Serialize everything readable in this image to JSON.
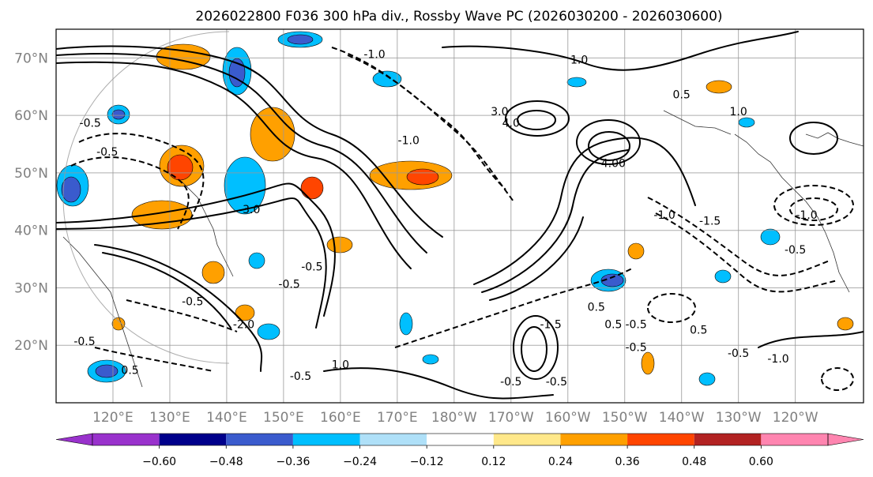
{
  "title": "2026022800 F036 300 hPa div., Rossby Wave PC (2026030200 - 2026030600)",
  "lat_labels": [
    "70°N",
    "60°N",
    "50°N",
    "40°N",
    "30°N",
    "20°N"
  ],
  "lon_labels": [
    "120°E",
    "130°E",
    "140°E",
    "150°E",
    "160°E",
    "170°E",
    "180°W",
    "170°W",
    "160°W",
    "150°W",
    "140°W",
    "130°W",
    "120°W"
  ],
  "colorbar": {
    "ticks": [
      "−0.60",
      "−0.48",
      "−0.36",
      "−0.24",
      "−0.12",
      "0.12",
      "0.24",
      "0.36",
      "0.48",
      "0.60"
    ],
    "colors": [
      "#9932cc",
      "#00008b",
      "#3a5bcd",
      "#00bfff",
      "#afe0f8",
      "#ffffff",
      "#ffe88a",
      "#ffa000",
      "#ff4500",
      "#b22222",
      "#ff85b0"
    ]
  },
  "contour_labels": [
    {
      "text": "-0.5",
      "lon": -170,
      "lat": 13
    },
    {
      "text": "-0.5",
      "lon": -162,
      "lat": 13
    },
    {
      "text": "-0.5",
      "lon": -130,
      "lat": 18
    },
    {
      "text": "-0.5",
      "lon": -148,
      "lat": 19
    },
    {
      "text": "0.5",
      "lon": -152,
      "lat": 23
    },
    {
      "text": "0.5",
      "lon": -137,
      "lat": 22
    },
    {
      "text": "-0.5",
      "lon": 153,
      "lat": 14
    },
    {
      "text": "1.0",
      "lon": 160,
      "lat": 16
    },
    {
      "text": "-2.0",
      "lon": 143,
      "lat": 23
    },
    {
      "text": "-0.5",
      "lon": 134,
      "lat": 27
    },
    {
      "text": "-0.5",
      "lon": 151,
      "lat": 30
    },
    {
      "text": "-0.5",
      "lon": 155,
      "lat": 33
    },
    {
      "text": "-1.5",
      "lon": -135,
      "lat": 41
    },
    {
      "text": "-1.0",
      "lon": -143,
      "lat": 42
    },
    {
      "text": "-0.5",
      "lon": -120,
      "lat": 36
    },
    {
      "text": "-1.0",
      "lon": -123,
      "lat": 17
    },
    {
      "text": "4.0",
      "lon": -170,
      "lat": 58
    },
    {
      "text": "3.0",
      "lon": -172,
      "lat": 60
    },
    {
      "text": "4.00",
      "lon": -152,
      "lat": 51
    },
    {
      "text": "1.0",
      "lon": -158,
      "lat": 69
    },
    {
      "text": "0.5",
      "lon": -140,
      "lat": 63
    },
    {
      "text": "-1.0",
      "lon": 166,
      "lat": 70
    },
    {
      "text": "-1.0",
      "lon": 172,
      "lat": 55
    },
    {
      "text": "-3.0",
      "lon": 144,
      "lat": 43
    },
    {
      "text": "-1.5",
      "lon": -163,
      "lat": 23
    },
    {
      "text": "-0.5",
      "lon": -148,
      "lat": 23
    },
    {
      "text": "0.5",
      "lon": -155,
      "lat": 26
    },
    {
      "text": "1.0",
      "lon": -130,
      "lat": 60
    },
    {
      "text": "-1.0",
      "lon": -118,
      "lat": 42
    },
    {
      "text": "-0.5",
      "lon": 116,
      "lat": 58
    },
    {
      "text": "-0.5",
      "lon": 119,
      "lat": 53
    },
    {
      "text": "-0.5",
      "lon": 115,
      "lat": 20
    },
    {
      "text": "0.5",
      "lon": 123,
      "lat": 15
    }
  ]
}
